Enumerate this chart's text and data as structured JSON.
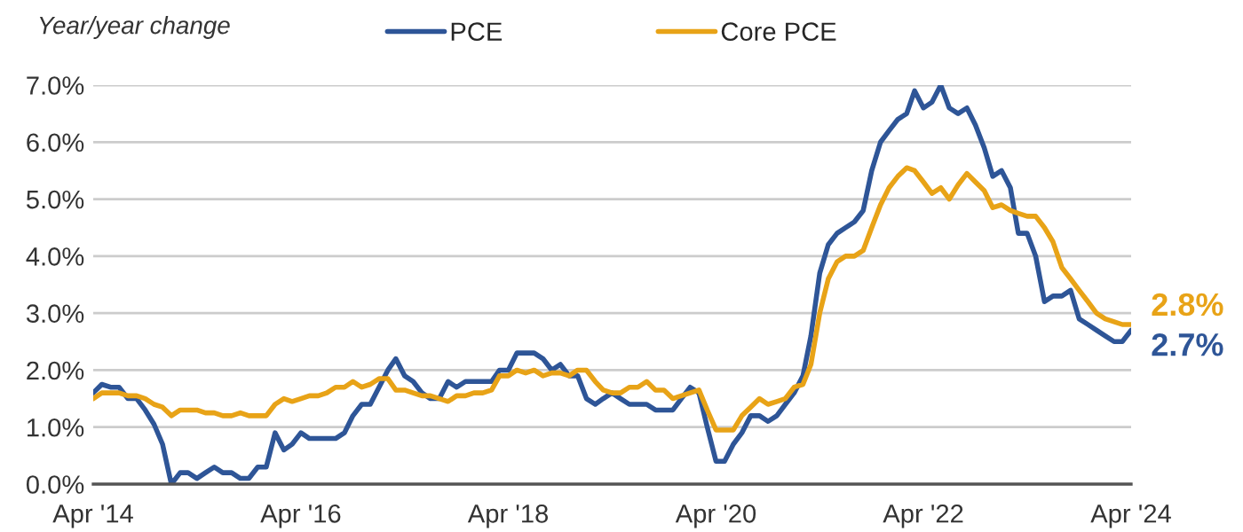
{
  "chart_data": {
    "type": "line",
    "ylabel": "Year/year change",
    "x": [
      "2014-04",
      "2014-05",
      "2014-06",
      "2014-07",
      "2014-08",
      "2014-09",
      "2014-10",
      "2014-11",
      "2014-12",
      "2015-01",
      "2015-02",
      "2015-03",
      "2015-04",
      "2015-05",
      "2015-06",
      "2015-07",
      "2015-08",
      "2015-09",
      "2015-10",
      "2015-11",
      "2015-12",
      "2016-01",
      "2016-02",
      "2016-03",
      "2016-04",
      "2016-05",
      "2016-06",
      "2016-07",
      "2016-08",
      "2016-09",
      "2016-10",
      "2016-11",
      "2016-12",
      "2017-01",
      "2017-02",
      "2017-03",
      "2017-04",
      "2017-05",
      "2017-06",
      "2017-07",
      "2017-08",
      "2017-09",
      "2017-10",
      "2017-11",
      "2017-12",
      "2018-01",
      "2018-02",
      "2018-03",
      "2018-04",
      "2018-05",
      "2018-06",
      "2018-07",
      "2018-08",
      "2018-09",
      "2018-10",
      "2018-11",
      "2018-12",
      "2019-01",
      "2019-02",
      "2019-03",
      "2019-04",
      "2019-05",
      "2019-06",
      "2019-07",
      "2019-08",
      "2019-09",
      "2019-10",
      "2019-11",
      "2019-12",
      "2020-01",
      "2020-02",
      "2020-03",
      "2020-04",
      "2020-05",
      "2020-06",
      "2020-07",
      "2020-08",
      "2020-09",
      "2020-10",
      "2020-11",
      "2020-12",
      "2021-01",
      "2021-02",
      "2021-03",
      "2021-04",
      "2021-05",
      "2021-06",
      "2021-07",
      "2021-08",
      "2021-09",
      "2021-10",
      "2021-11",
      "2021-12",
      "2022-01",
      "2022-02",
      "2022-03",
      "2022-04",
      "2022-05",
      "2022-06",
      "2022-07",
      "2022-08",
      "2022-09",
      "2022-10",
      "2022-11",
      "2022-12",
      "2023-01",
      "2023-02",
      "2023-03",
      "2023-04",
      "2023-05",
      "2023-06",
      "2023-07",
      "2023-08",
      "2023-09",
      "2023-10",
      "2023-11",
      "2023-12",
      "2024-01",
      "2024-02",
      "2024-03",
      "2024-04"
    ],
    "series": [
      {
        "name": "PCE",
        "color": "#2e5597",
        "values": [
          1.6,
          1.75,
          1.7,
          1.7,
          1.5,
          1.5,
          1.3,
          1.05,
          0.7,
          0.0,
          0.2,
          0.2,
          0.1,
          0.2,
          0.3,
          0.2,
          0.2,
          0.1,
          0.1,
          0.3,
          0.3,
          0.9,
          0.6,
          0.7,
          0.9,
          0.8,
          0.8,
          0.8,
          0.8,
          0.9,
          1.2,
          1.4,
          1.4,
          1.7,
          2.0,
          2.2,
          1.9,
          1.8,
          1.6,
          1.5,
          1.5,
          1.8,
          1.7,
          1.8,
          1.8,
          1.8,
          1.8,
          2.0,
          2.0,
          2.3,
          2.3,
          2.3,
          2.2,
          2.0,
          2.1,
          1.9,
          1.9,
          1.5,
          1.4,
          1.5,
          1.6,
          1.5,
          1.4,
          1.4,
          1.4,
          1.3,
          1.3,
          1.3,
          1.5,
          1.7,
          1.6,
          1.0,
          0.4,
          0.4,
          0.7,
          0.9,
          1.2,
          1.2,
          1.1,
          1.2,
          1.4,
          1.6,
          1.9,
          2.6,
          3.7,
          4.2,
          4.4,
          4.5,
          4.6,
          4.8,
          5.5,
          6.0,
          6.2,
          6.4,
          6.5,
          6.9,
          6.6,
          6.7,
          7.0,
          6.6,
          6.5,
          6.6,
          6.3,
          5.9,
          5.4,
          5.5,
          5.2,
          4.4,
          4.4,
          4.0,
          3.2,
          3.3,
          3.3,
          3.4,
          2.9,
          2.8,
          2.7,
          2.6,
          2.5,
          2.5,
          2.7
        ]
      },
      {
        "name": "Core PCE",
        "color": "#e8a317",
        "values": [
          1.5,
          1.6,
          1.6,
          1.6,
          1.55,
          1.55,
          1.5,
          1.4,
          1.35,
          1.2,
          1.3,
          1.3,
          1.3,
          1.25,
          1.25,
          1.2,
          1.2,
          1.25,
          1.2,
          1.2,
          1.2,
          1.4,
          1.5,
          1.45,
          1.5,
          1.55,
          1.55,
          1.6,
          1.7,
          1.7,
          1.8,
          1.7,
          1.75,
          1.85,
          1.85,
          1.65,
          1.65,
          1.6,
          1.55,
          1.55,
          1.5,
          1.45,
          1.55,
          1.55,
          1.6,
          1.6,
          1.65,
          1.9,
          1.9,
          2.0,
          1.95,
          2.0,
          1.9,
          1.95,
          1.95,
          1.9,
          2.0,
          2.0,
          1.8,
          1.65,
          1.6,
          1.6,
          1.7,
          1.7,
          1.8,
          1.65,
          1.65,
          1.5,
          1.55,
          1.6,
          1.65,
          1.3,
          0.95,
          0.95,
          0.95,
          1.2,
          1.35,
          1.5,
          1.4,
          1.45,
          1.5,
          1.7,
          1.75,
          2.1,
          3.0,
          3.6,
          3.9,
          4.0,
          4.0,
          4.1,
          4.5,
          4.9,
          5.2,
          5.4,
          5.55,
          5.5,
          5.3,
          5.1,
          5.2,
          5.0,
          5.25,
          5.45,
          5.3,
          5.15,
          4.85,
          4.9,
          4.8,
          4.75,
          4.7,
          4.7,
          4.5,
          4.25,
          3.8,
          3.6,
          3.4,
          3.2,
          3.0,
          2.9,
          2.85,
          2.8,
          2.8
        ]
      }
    ],
    "annotations": [
      {
        "text": "2.7%",
        "x": "2024-04",
        "y": 2.7
      },
      {
        "text": "2.8%",
        "x": "2024-04",
        "y": 2.8
      }
    ],
    "xlim": [
      "2014-04",
      "2024-04"
    ],
    "xticks": [
      {
        "value": "2014-04",
        "label": "Apr '14"
      },
      {
        "value": "2016-04",
        "label": "Apr '16"
      },
      {
        "value": "2018-04",
        "label": "Apr '18"
      },
      {
        "value": "2020-04",
        "label": "Apr '20"
      },
      {
        "value": "2022-04",
        "label": "Apr '22"
      },
      {
        "value": "2024-04",
        "label": "Apr '24"
      }
    ],
    "ylim": [
      0,
      7
    ],
    "yticks": [
      {
        "value": 0,
        "label": "0.0%"
      },
      {
        "value": 1,
        "label": "1.0%"
      },
      {
        "value": 2,
        "label": "2.0%"
      },
      {
        "value": 3,
        "label": "3.0%"
      },
      {
        "value": 4,
        "label": "4.0%"
      },
      {
        "value": 5,
        "label": "5.0%"
      },
      {
        "value": 6,
        "label": "6.0%"
      },
      {
        "value": 7,
        "label": "7.0%"
      }
    ],
    "grid": "y",
    "legend": "top"
  }
}
